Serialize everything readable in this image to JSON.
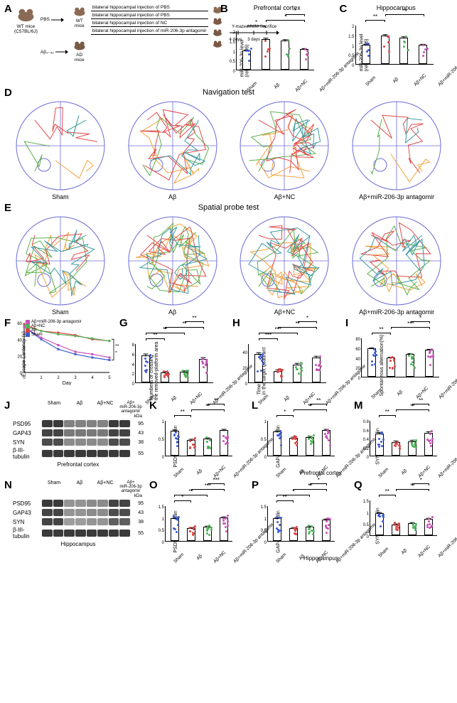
{
  "colors": {
    "sham": "#3b5bd1",
    "ab": "#d94545",
    "abnc": "#4fb25a",
    "anta": "#c951b6",
    "axis": "#000000",
    "maze": "#6b6bd6",
    "trace_q1": "#f4a23a",
    "trace_q2": "#5fb04d",
    "trace_q3": "#e14b4b",
    "trace_q4": "#3b9aa0",
    "band_dark": "#2a2a2a",
    "band_med": "#6e6e6e",
    "band_light": "#b8b8b8"
  },
  "groups": [
    "Sham",
    "Aβ",
    "Aβ+NC",
    "Aβ+miR-206-3p antagomir"
  ],
  "panelA": {
    "wt_label": "WT mice",
    "source_label": "WT mice\n(C57BL/6J)",
    "ad_label": "AD mice",
    "arrow_pbs": "PBS",
    "arrow_ab": "Aβ₁₋₄₂",
    "treatments": [
      "bilateral hippocampal injection of PBS",
      "bilateral hippocampal injection of PBS",
      "bilateral hippocampal injection of NC",
      "bilateral hippocampal injection of miR-206-3p antagomir"
    ],
    "timeline": [
      "4 days",
      "Y-maze",
      "3 days",
      "MWM",
      "Sacrifice"
    ]
  },
  "B": {
    "title": "Prefrontal cortex",
    "ylabel": "miR-206-3p level\n(relative to U6)",
    "ylim": [
      0,
      2.0
    ],
    "yticks": [
      0,
      0.5,
      1.0,
      1.5,
      2.0
    ],
    "values": [
      1.0,
      1.55,
      1.5,
      1.05
    ],
    "err": [
      0.08,
      0.1,
      0.1,
      0.08
    ],
    "sig": [
      [
        0,
        1,
        "*"
      ],
      [
        1,
        3,
        "*"
      ],
      [
        2,
        3,
        "*"
      ]
    ]
  },
  "C": {
    "title": "Hippocampus",
    "ylabel": "miR-206-3p level\n(relative to U6)",
    "ylim": [
      0,
      2.0
    ],
    "yticks": [
      0,
      0.5,
      1.0,
      1.5,
      2.0
    ],
    "values": [
      1.0,
      1.45,
      1.35,
      1.0
    ],
    "err": [
      0.08,
      0.1,
      0.1,
      0.08
    ],
    "sig": [
      [
        0,
        1,
        "**"
      ],
      [
        1,
        3,
        "**"
      ]
    ]
  },
  "D": {
    "title": "Navigation test"
  },
  "E": {
    "title": "Spatial probe test"
  },
  "F": {
    "ylabel": "Escape Lantency (s)",
    "xlabel": "Day",
    "days": [
      0,
      1,
      2,
      3,
      4,
      5
    ],
    "yticks": [
      0,
      20,
      40,
      60
    ],
    "series": {
      "Sham": [
        55,
        40,
        28,
        22,
        18,
        15
      ],
      "Aβ": [
        58,
        50,
        48,
        45,
        40,
        38
      ],
      "Aβ+NC": [
        56,
        50,
        46,
        44,
        41,
        38
      ],
      "Aβ+miR-206-3p antagomir": [
        55,
        42,
        33,
        25,
        22,
        18
      ]
    },
    "legend_order": [
      "Aβ+miR-206-3p antagomir",
      "Aβ+NC",
      "Aβ",
      "Sham"
    ],
    "sig": "** / *"
  },
  "G": {
    "ylabel": "Numbers of crossing\nthe removed-platform area",
    "ylim": [
      0,
      8
    ],
    "yticks": [
      0,
      2,
      4,
      6,
      8
    ],
    "values": [
      5.5,
      2.0,
      2.2,
      4.8
    ],
    "err": [
      0.5,
      0.4,
      0.4,
      0.5
    ],
    "sig": [
      [
        0,
        1,
        "**"
      ],
      [
        0,
        2,
        "**"
      ],
      [
        1,
        3,
        "**"
      ],
      [
        2,
        3,
        "**"
      ]
    ]
  },
  "H": {
    "ylabel": "Time spent (S)\nin the target quadrant",
    "ylim": [
      0,
      50
    ],
    "yticks": [
      0,
      20,
      40
    ],
    "values": [
      36,
      15,
      23,
      32
    ],
    "err": [
      3,
      3,
      3,
      3
    ],
    "sig": [
      [
        0,
        1,
        "***"
      ],
      [
        0,
        2,
        "***"
      ],
      [
        1,
        3,
        "**"
      ],
      [
        2,
        3,
        "*"
      ]
    ]
  },
  "I": {
    "ylabel": "Spontaneous alternation(%)",
    "ylim": [
      0,
      80
    ],
    "yticks": [
      0,
      20,
      40,
      60,
      80
    ],
    "values": [
      58,
      40,
      46,
      56
    ],
    "err": [
      3,
      3,
      3,
      3
    ],
    "sig": [
      [
        0,
        1,
        "**"
      ],
      [
        1,
        3,
        "***"
      ],
      [
        2,
        3,
        "*"
      ]
    ]
  },
  "J": {
    "region": "Prefrontal cortex",
    "proteins": [
      "PSD95",
      "GAP43",
      "SYN",
      "β-III-tubulin"
    ],
    "kda": [
      95,
      43,
      38,
      55
    ],
    "intensity": {
      "PSD95": [
        0.9,
        0.9,
        0.5,
        0.5,
        0.5,
        0.5,
        0.9,
        0.9
      ],
      "GAP43": [
        0.85,
        0.85,
        0.55,
        0.55,
        0.55,
        0.55,
        0.85,
        0.85
      ],
      "SYN": [
        0.8,
        0.8,
        0.45,
        0.45,
        0.45,
        0.45,
        0.8,
        0.8
      ],
      "β-III-tubulin": [
        0.9,
        0.9,
        0.9,
        0.9,
        0.9,
        0.9,
        0.9,
        0.9
      ]
    }
  },
  "K": {
    "ylabel": "PSD95/β-III-tubulin",
    "ylim": [
      0,
      1.0
    ],
    "yticks": [
      0,
      0.5,
      1.0
    ],
    "values": [
      0.7,
      0.45,
      0.48,
      0.72
    ],
    "err": [
      0.05,
      0.05,
      0.05,
      0.05
    ],
    "sig": [
      [
        0,
        1,
        "**"
      ],
      [
        1,
        3,
        "**"
      ],
      [
        2,
        3,
        "**"
      ]
    ]
  },
  "L": {
    "ylabel": "GAP43/β-III-tubulin",
    "ylim": [
      0,
      1.0
    ],
    "yticks": [
      0,
      0.5,
      1.0
    ],
    "values": [
      0.68,
      0.5,
      0.52,
      0.72
    ],
    "err": [
      0.05,
      0.05,
      0.05,
      0.05
    ],
    "sig": [
      [
        0,
        1,
        "*"
      ],
      [
        1,
        3,
        "**"
      ],
      [
        2,
        3,
        "**"
      ]
    ]
  },
  "M": {
    "ylabel": "SYN/β-III-tubulin",
    "ylim": [
      0,
      0.8
    ],
    "yticks": [
      0,
      0.2,
      0.4,
      0.6,
      0.8
    ],
    "values": [
      0.5,
      0.3,
      0.32,
      0.52
    ],
    "err": [
      0.05,
      0.05,
      0.05,
      0.05
    ],
    "sig": [
      [
        0,
        1,
        "**"
      ],
      [
        1,
        3,
        "**"
      ],
      [
        2,
        3,
        "**"
      ]
    ]
  },
  "N": {
    "region": "Hippocampus",
    "proteins": [
      "PSD95",
      "GAP43",
      "SYN",
      "β-III-tubulin"
    ],
    "kda": [
      95,
      43,
      38,
      55
    ],
    "intensity": {
      "PSD95": [
        0.9,
        0.9,
        0.4,
        0.4,
        0.45,
        0.45,
        0.85,
        0.85
      ],
      "GAP43": [
        0.85,
        0.85,
        0.4,
        0.4,
        0.45,
        0.45,
        0.8,
        0.8
      ],
      "SYN": [
        0.85,
        0.85,
        0.35,
        0.35,
        0.4,
        0.4,
        0.7,
        0.7
      ],
      "β-III-tubulin": [
        0.9,
        0.9,
        0.9,
        0.9,
        0.9,
        0.9,
        0.9,
        0.9
      ]
    }
  },
  "O": {
    "ylabel": "PSD95/β-III-tubulin",
    "ylim": [
      0,
      1.5
    ],
    "yticks": [
      0,
      0.5,
      1.0,
      1.5
    ],
    "values": [
      0.95,
      0.55,
      0.6,
      1.0
    ],
    "err": [
      0.07,
      0.07,
      0.07,
      0.07
    ],
    "sig": [
      [
        0,
        1,
        "*"
      ],
      [
        0,
        2,
        "**"
      ],
      [
        1,
        3,
        "***"
      ],
      [
        2,
        3,
        "***"
      ]
    ]
  },
  "P": {
    "ylabel": "GAP43/β-III-tubulin",
    "ylim": [
      0,
      1.5
    ],
    "yticks": [
      0,
      0.5,
      1.0,
      1.5
    ],
    "values": [
      0.95,
      0.55,
      0.6,
      0.9
    ],
    "err": [
      0.07,
      0.07,
      0.07,
      0.07
    ],
    "sig": [
      [
        0,
        1,
        "**"
      ],
      [
        0,
        2,
        "*"
      ],
      [
        1,
        3,
        "**"
      ],
      [
        2,
        3,
        "*"
      ]
    ]
  },
  "Q": {
    "ylabel": "SYN/β-III-tubulin",
    "ylim": [
      0,
      1.5
    ],
    "yticks": [
      0,
      0.5,
      1.0,
      1.5
    ],
    "values": [
      0.92,
      0.45,
      0.5,
      0.7
    ],
    "err": [
      0.07,
      0.07,
      0.07,
      0.07
    ],
    "sig": [
      [
        0,
        1,
        "**"
      ],
      [
        1,
        3,
        "**"
      ],
      [
        2,
        3,
        "*"
      ]
    ]
  },
  "region_labels": {
    "pfc": "Prefrontal cortex",
    "hip": "Hippocampus"
  },
  "kda_label": "kDa"
}
